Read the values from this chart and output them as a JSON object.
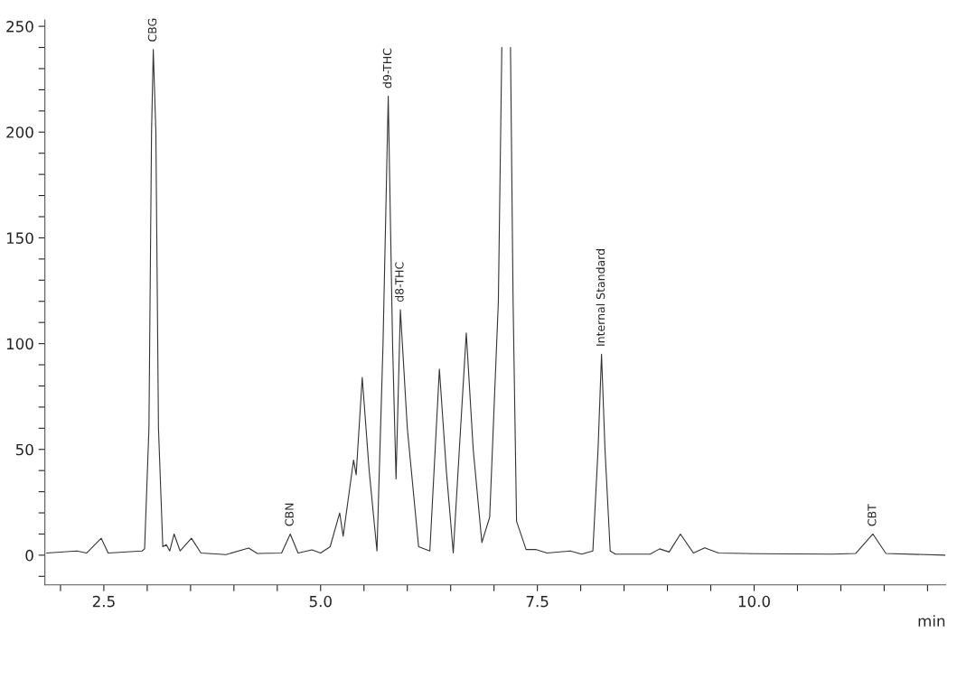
{
  "chart_data": {
    "type": "line",
    "xlabel": "min",
    "x": [
      1.84,
      2.19,
      2.3,
      2.47,
      2.55,
      2.94,
      2.97,
      3.02,
      3.05,
      3.07,
      3.1,
      3.13,
      3.18,
      3.22,
      3.26,
      3.31,
      3.38,
      3.51,
      3.62,
      3.91,
      4.17,
      4.27,
      4.55,
      4.65,
      4.74,
      4.9,
      5.0,
      5.11,
      5.22,
      5.26,
      5.38,
      5.41,
      5.48,
      5.56,
      5.65,
      5.72,
      5.78,
      5.83,
      5.87,
      5.92,
      6.0,
      6.13,
      6.26,
      6.37,
      6.45,
      6.53,
      6.6,
      6.68,
      6.76,
      6.86,
      6.95,
      7.05,
      7.09,
      7.11,
      7.17,
      7.19,
      7.22,
      7.26,
      7.37,
      7.48,
      7.61,
      7.88,
      8.01,
      8.14,
      8.2,
      8.24,
      8.28,
      8.34,
      8.4,
      8.8,
      8.91,
      9.02,
      9.15,
      9.3,
      9.43,
      9.59,
      10.03,
      10.9,
      11.17,
      11.37,
      11.52,
      12.2
    ],
    "series": [
      {
        "color": "#333333",
        "values": [
          1,
          2,
          1,
          8,
          1,
          2,
          3,
          60,
          200,
          239,
          200,
          60,
          4,
          5,
          2,
          10,
          2,
          8,
          1,
          0.3,
          3.4,
          0.8,
          1,
          10,
          1,
          2.5,
          1,
          4,
          20,
          9,
          45,
          38,
          84,
          40,
          2,
          100,
          217,
          100,
          36,
          116,
          60,
          4,
          2,
          88,
          40,
          1,
          50,
          105,
          50,
          6,
          18,
          120,
          240,
          null,
          null,
          240,
          120,
          16,
          2.7,
          2.7,
          1,
          2,
          0.5,
          2,
          50,
          95,
          50,
          2,
          0.5,
          0.5,
          3,
          1.5,
          10,
          1,
          3.5,
          1,
          0.7,
          0.5,
          0.8,
          10,
          0.8,
          0
        ]
      }
    ],
    "xlim": [
      1.82,
      12.21
    ],
    "ylim": [
      -14,
      253
    ],
    "xticks": [
      {
        "value": 2.0,
        "label": null
      },
      {
        "value": 2.5,
        "label": "2.5"
      },
      {
        "value": 3.0,
        "label": null
      },
      {
        "value": 3.5,
        "label": null
      },
      {
        "value": 4.0,
        "label": null
      },
      {
        "value": 4.5,
        "label": null
      },
      {
        "value": 5.0,
        "label": "5.0"
      },
      {
        "value": 5.5,
        "label": null
      },
      {
        "value": 6.0,
        "label": null
      },
      {
        "value": 6.5,
        "label": null
      },
      {
        "value": 7.0,
        "label": null
      },
      {
        "value": 7.5,
        "label": "7.5"
      },
      {
        "value": 8.0,
        "label": null
      },
      {
        "value": 8.5,
        "label": null
      },
      {
        "value": 9.0,
        "label": null
      },
      {
        "value": 9.5,
        "label": null
      },
      {
        "value": 10.0,
        "label": "10.0"
      },
      {
        "value": 10.5,
        "label": null
      },
      {
        "value": 11.0,
        "label": null
      },
      {
        "value": 11.5,
        "label": null
      },
      {
        "value": 12.0,
        "label": null
      }
    ],
    "yticks": [
      {
        "value": -10,
        "label": null
      },
      0,
      {
        "value": 10,
        "label": null
      },
      {
        "value": 20,
        "label": null
      },
      {
        "value": 30,
        "label": null
      },
      {
        "value": 40,
        "label": null
      },
      50,
      {
        "value": 60,
        "label": null
      },
      {
        "value": 70,
        "label": null
      },
      {
        "value": 80,
        "label": null
      },
      {
        "value": 90,
        "label": null
      },
      100,
      {
        "value": 110,
        "label": null
      },
      {
        "value": 120,
        "label": null
      },
      {
        "value": 130,
        "label": null
      },
      {
        "value": 140,
        "label": null
      },
      150,
      {
        "value": 160,
        "label": null
      },
      {
        "value": 170,
        "label": null
      },
      {
        "value": 180,
        "label": null
      },
      {
        "value": 190,
        "label": null
      },
      200,
      {
        "value": 210,
        "label": null
      },
      {
        "value": 220,
        "label": null
      },
      {
        "value": 230,
        "label": null
      },
      {
        "value": 240,
        "label": null
      },
      250
    ],
    "annotations": [
      {
        "text": "CBG",
        "x": 3.07,
        "y": 239
      },
      {
        "text": "CBN",
        "x": 4.65,
        "y": 10
      },
      {
        "text": "d9-THC",
        "x": 5.78,
        "y": 217
      },
      {
        "text": "d8-THC",
        "x": 5.92,
        "y": 116
      },
      {
        "text": "Internal Standard",
        "x": 8.24,
        "y": 95
      },
      {
        "text": "CBT",
        "x": 11.37,
        "y": 10
      }
    ],
    "grid": false,
    "marker": "none",
    "line_style": "solid"
  }
}
